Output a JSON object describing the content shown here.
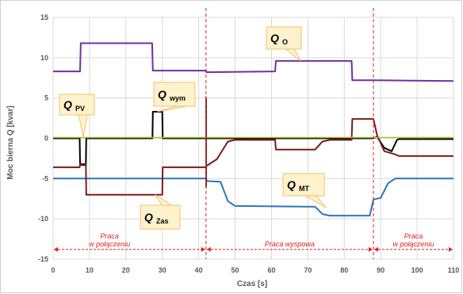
{
  "chart_data": {
    "type": "line",
    "xlabel": "Czas [s]",
    "ylabel": "Moc bierna Q [kvar]",
    "xlim": [
      0,
      110
    ],
    "ylim": [
      -15,
      15
    ],
    "xticks": [
      0,
      10,
      20,
      30,
      40,
      50,
      60,
      70,
      80,
      90,
      100,
      110
    ],
    "yticks": [
      -15,
      -10,
      -5,
      0,
      5,
      10,
      15
    ],
    "grid": true,
    "series": [
      {
        "name": "Q O",
        "color": "#7030a0",
        "points": [
          [
            0,
            8.3
          ],
          [
            7.4,
            8.3
          ],
          [
            7.6,
            11.8
          ],
          [
            27.2,
            11.8
          ],
          [
            27.4,
            8.4
          ],
          [
            42,
            8.4
          ],
          [
            42.1,
            8.2
          ],
          [
            61,
            8.3
          ],
          [
            61.2,
            9.6
          ],
          [
            82,
            9.6
          ],
          [
            82.2,
            7.2
          ],
          [
            88,
            7.2
          ],
          [
            88.2,
            7.2
          ],
          [
            110,
            7.1
          ]
        ]
      },
      {
        "name": "Q MT",
        "color": "#2e75b6",
        "points": [
          [
            0,
            -5.0
          ],
          [
            42,
            -5.0
          ],
          [
            42.2,
            -5.3
          ],
          [
            46,
            -5.4
          ],
          [
            48,
            -7.8
          ],
          [
            50,
            -8.4
          ],
          [
            72,
            -8.5
          ],
          [
            74,
            -9.4
          ],
          [
            76,
            -9.6
          ],
          [
            87,
            -9.6
          ],
          [
            88,
            -7.6
          ],
          [
            90,
            -7.4
          ],
          [
            92,
            -5.6
          ],
          [
            94,
            -5.0
          ],
          [
            110,
            -5.0
          ]
        ]
      },
      {
        "name": "Q wym",
        "color": "#000000",
        "points": [
          [
            0,
            0
          ],
          [
            7.3,
            0
          ],
          [
            7.4,
            -3.3
          ],
          [
            9.0,
            -3.3
          ],
          [
            9.1,
            0
          ],
          [
            27.3,
            0
          ],
          [
            27.4,
            3.3
          ],
          [
            30.0,
            3.3
          ],
          [
            30.1,
            0
          ],
          [
            88,
            0
          ],
          [
            89,
            0.2
          ],
          [
            91,
            -1.2
          ],
          [
            93,
            -1.6
          ],
          [
            94.5,
            -0.2
          ],
          [
            95,
            -0.1
          ],
          [
            110,
            -0.1
          ]
        ]
      },
      {
        "name": "Q Zas",
        "color": "#7b1b1b",
        "points": [
          [
            0,
            -3.6
          ],
          [
            7.3,
            -3.6
          ],
          [
            7.4,
            -3.2
          ],
          [
            9.0,
            -3.2
          ],
          [
            9.1,
            -7.0
          ],
          [
            30.0,
            -7.0
          ],
          [
            30.1,
            -3.6
          ],
          [
            42,
            -3.6
          ],
          [
            42.2,
            -3.4
          ],
          [
            45,
            -2.6
          ],
          [
            48,
            -0.4
          ],
          [
            50,
            -0.2
          ],
          [
            61,
            -0.2
          ],
          [
            61.2,
            -1.4
          ],
          [
            72,
            -1.4
          ],
          [
            74,
            -0.4
          ],
          [
            76,
            -0.2
          ],
          [
            82,
            -0.2
          ],
          [
            82.2,
            2.4
          ],
          [
            88,
            2.4
          ],
          [
            89,
            0.4
          ],
          [
            91,
            -1.6
          ],
          [
            94,
            -2.0
          ],
          [
            95,
            -2.2
          ],
          [
            110,
            -2.2
          ]
        ]
      },
      {
        "name": "Q PV",
        "color": "#a9c436",
        "points": [
          [
            0,
            0.1
          ],
          [
            110,
            0.1
          ]
        ]
      }
    ],
    "vlines": [
      42,
      88
    ],
    "regions": [
      {
        "label": "Praca w połączeniu",
        "from": 0,
        "to": 42
      },
      {
        "label": "Praca wyspowa",
        "from": 42,
        "to": 88
      },
      {
        "label": "Praca w połączeniu",
        "from": 88,
        "to": 110
      }
    ],
    "annotations": [
      {
        "main": "Q",
        "sub": "PV"
      },
      {
        "main": "Q",
        "sub": "wym"
      },
      {
        "main": "Q",
        "sub": "O"
      },
      {
        "main": "Q",
        "sub": "MT"
      },
      {
        "main": "Q",
        "sub": "Zas"
      }
    ]
  }
}
